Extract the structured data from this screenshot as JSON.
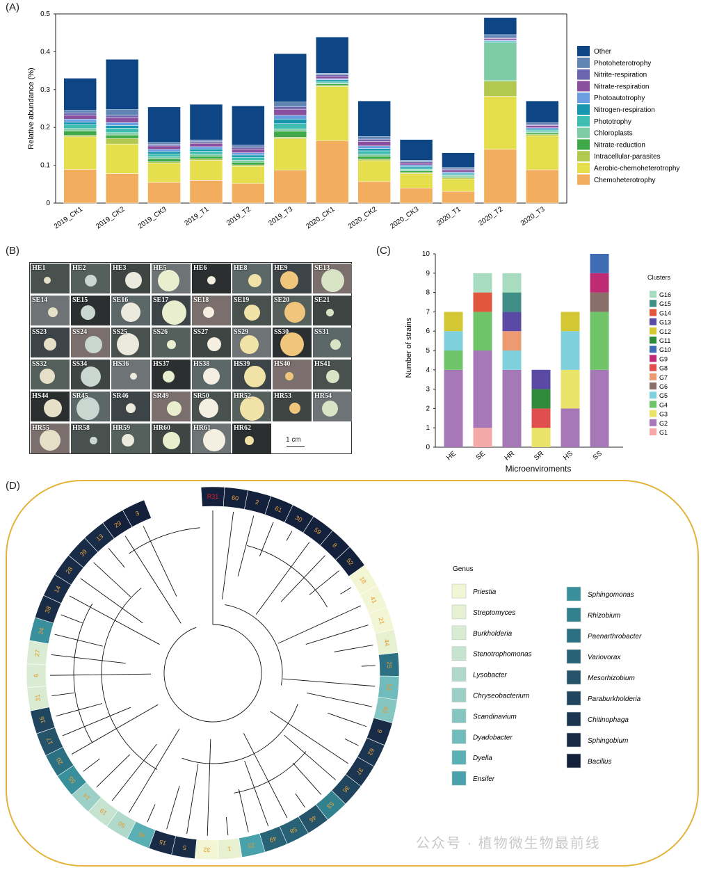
{
  "panel_labels": {
    "a": "(A)",
    "b": "(B)",
    "c": "(C)",
    "d": "(D)"
  },
  "chart_data": [
    {
      "type": "bar",
      "stacked": true,
      "ylabel": "Relative abundance (%)",
      "ylim": [
        0,
        0.5
      ],
      "yticks": [
        "0",
        "0.1",
        "0.2",
        "0.3",
        "0.4",
        "0.5"
      ],
      "legend_position": "right",
      "categories": [
        "2019_CK1",
        "2019_CK2",
        "2019_CK3",
        "2019_T1",
        "2019_T2",
        "2019_T3",
        "2020_CK1",
        "2020_CK2",
        "2020_CK3",
        "2020_T1",
        "2020_T2",
        "2020_T3"
      ],
      "series": [
        {
          "name": "Chemoheterotrophy",
          "color": "#f2ae5e",
          "values": [
            0.089,
            0.078,
            0.055,
            0.06,
            0.052,
            0.087,
            0.165,
            0.057,
            0.04,
            0.031,
            0.142,
            0.088
          ]
        },
        {
          "name": "Aerobic-chemoheterotrophy",
          "color": "#e6df4d",
          "values": [
            0.086,
            0.078,
            0.05,
            0.053,
            0.045,
            0.083,
            0.143,
            0.055,
            0.038,
            0.033,
            0.14,
            0.09
          ]
        },
        {
          "name": "Intracellular-parasites",
          "color": "#b3c84e",
          "values": [
            0.004,
            0.015,
            0.004,
            0.004,
            0.004,
            0.004,
            0.003,
            0.004,
            0.003,
            0.003,
            0.04,
            0.004
          ]
        },
        {
          "name": "Nitrate-reduction",
          "color": "#3fa94a",
          "values": [
            0.012,
            0.009,
            0.008,
            0.007,
            0.007,
            0.016,
            0.004,
            0.008,
            0.004,
            0.003,
            0.002,
            0.004
          ]
        },
        {
          "name": "Chloroplasts",
          "color": "#7ecba6",
          "values": [
            0.006,
            0.006,
            0.005,
            0.005,
            0.005,
            0.006,
            0.003,
            0.005,
            0.004,
            0.003,
            0.1,
            0.003
          ]
        },
        {
          "name": "Phototrophy",
          "color": "#3fbdb0",
          "values": [
            0.01,
            0.012,
            0.008,
            0.008,
            0.008,
            0.014,
            0.004,
            0.009,
            0.004,
            0.003,
            0.003,
            0.004
          ]
        },
        {
          "name": "Nitrogen-respiration",
          "color": "#1a97b0",
          "values": [
            0.007,
            0.007,
            0.006,
            0.006,
            0.006,
            0.012,
            0.004,
            0.006,
            0.004,
            0.003,
            0.002,
            0.003
          ]
        },
        {
          "name": "Photoautotrophy",
          "color": "#6a9ee0",
          "values": [
            0.008,
            0.008,
            0.006,
            0.006,
            0.006,
            0.01,
            0.003,
            0.007,
            0.004,
            0.003,
            0.002,
            0.003
          ]
        },
        {
          "name": "Nitrate-respiration",
          "color": "#8a4f9e",
          "values": [
            0.01,
            0.013,
            0.009,
            0.009,
            0.01,
            0.016,
            0.006,
            0.012,
            0.005,
            0.005,
            0.004,
            0.006
          ]
        },
        {
          "name": "Nitrite-respiration",
          "color": "#6b66ad",
          "values": [
            0.006,
            0.006,
            0.004,
            0.004,
            0.005,
            0.007,
            0.004,
            0.006,
            0.003,
            0.003,
            0.002,
            0.003
          ]
        },
        {
          "name": "Photoheterotrophy",
          "color": "#6185b5",
          "values": [
            0.007,
            0.015,
            0.005,
            0.005,
            0.005,
            0.012,
            0.004,
            0.007,
            0.004,
            0.004,
            0.008,
            0.004
          ]
        },
        {
          "name": "Other",
          "color": "#0d4585",
          "values": [
            0.085,
            0.133,
            0.094,
            0.094,
            0.104,
            0.128,
            0.096,
            0.094,
            0.055,
            0.039,
            0.045,
            0.058
          ]
        }
      ]
    },
    {
      "type": "bar",
      "stacked": true,
      "xlabel": "Microenviroments",
      "ylabel": "Number of strains",
      "ylim": [
        0,
        10
      ],
      "yticks": [
        "0",
        "1",
        "2",
        "3",
        "4",
        "5",
        "6",
        "7",
        "8",
        "9",
        "10"
      ],
      "legend_title": "Clusters",
      "legend_position": "right",
      "categories": [
        "HE",
        "SE",
        "HR",
        "SR",
        "HS",
        "SS"
      ],
      "series": [
        {
          "name": "G1",
          "color": "#f4a9a8",
          "values": [
            0,
            1,
            0,
            0,
            0,
            0
          ]
        },
        {
          "name": "G2",
          "color": "#a678b8",
          "values": [
            4,
            4,
            4,
            0,
            2,
            4
          ]
        },
        {
          "name": "G3",
          "color": "#e9e36a",
          "values": [
            0,
            0,
            0,
            1,
            2,
            0
          ]
        },
        {
          "name": "G4",
          "color": "#6fc46a",
          "values": [
            1,
            2,
            0,
            0,
            0,
            3
          ]
        },
        {
          "name": "G5",
          "color": "#7fd0dd",
          "values": [
            1,
            0,
            1,
            0,
            2,
            0
          ]
        },
        {
          "name": "G6",
          "color": "#8a6e6a",
          "values": [
            0,
            0,
            0,
            0,
            0,
            1
          ]
        },
        {
          "name": "G7",
          "color": "#ec9a72",
          "values": [
            0,
            0,
            1,
            0,
            0,
            0
          ]
        },
        {
          "name": "G8",
          "color": "#e04f4d",
          "values": [
            0,
            0,
            0,
            1,
            0,
            0
          ]
        },
        {
          "name": "G9",
          "color": "#bf2a74",
          "values": [
            0,
            0,
            0,
            0,
            0,
            1
          ]
        },
        {
          "name": "G10",
          "color": "#3f6db3",
          "values": [
            0,
            0,
            0,
            0,
            0,
            1
          ]
        },
        {
          "name": "G11",
          "color": "#2f8a3a",
          "values": [
            0,
            0,
            0,
            1,
            0,
            0
          ]
        },
        {
          "name": "G12",
          "color": "#d4c734",
          "values": [
            1,
            0,
            0,
            0,
            1,
            0
          ]
        },
        {
          "name": "G13",
          "color": "#5a4aa6",
          "values": [
            0,
            0,
            1,
            1,
            0,
            0
          ]
        },
        {
          "name": "G14",
          "color": "#e1573e",
          "values": [
            0,
            1,
            0,
            0,
            0,
            0
          ]
        },
        {
          "name": "G15",
          "color": "#3f8f86",
          "values": [
            0,
            0,
            1,
            0,
            0,
            0
          ]
        },
        {
          "name": "G16",
          "color": "#a8dcc0",
          "values": [
            0,
            1,
            1,
            0,
            0,
            0
          ]
        }
      ]
    }
  ],
  "colonies": {
    "scale_bar": "1 cm",
    "labels": [
      "HE1",
      "HE2",
      "HE3",
      "HE5",
      "HE6",
      "HE8",
      "HE9",
      "SE13",
      "SE14",
      "SE15",
      "SE16",
      "SE17",
      "SE18",
      "SE19",
      "SE20",
      "SE21",
      "SS23",
      "SS24",
      "SS25",
      "SS26",
      "SS27",
      "SS29",
      "SS30",
      "SS31",
      "SS32",
      "SS34",
      "HS36",
      "HS37",
      "HS38",
      "HS39",
      "HS40",
      "HS41",
      "HS44",
      "SR45",
      "SR46",
      "SR49",
      "SR50",
      "HR52",
      "HR53",
      "HR54",
      "HR55",
      "HR58",
      "HR59",
      "HR60",
      "HR61",
      "HR62"
    ]
  },
  "tree": {
    "legend_title": "Genus",
    "genera": [
      {
        "name": "Priestia",
        "color": "#f3f6d4"
      },
      {
        "name": "Streptomyces",
        "color": "#e7f1d2"
      },
      {
        "name": "Burkholderia",
        "color": "#d9ecd3"
      },
      {
        "name": "Stenotrophomonas",
        "color": "#c6e3cf"
      },
      {
        "name": "Lysobacter",
        "color": "#b0d9cb"
      },
      {
        "name": "Chryseobacterium",
        "color": "#9cd0c6"
      },
      {
        "name": "Scandinavium",
        "color": "#86c6c1"
      },
      {
        "name": "Dyadobacter",
        "color": "#70bbbb"
      },
      {
        "name": "Dyella",
        "color": "#5aafb4"
      },
      {
        "name": "Ensifer",
        "color": "#48a1ab"
      },
      {
        "name": "Sphingomonas",
        "color": "#3a8f9c"
      },
      {
        "name": "Rhizobium",
        "color": "#32818f"
      },
      {
        "name": "Paenarthrobacter",
        "color": "#2c7183"
      },
      {
        "name": "Variovorax",
        "color": "#286277"
      },
      {
        "name": "Mesorhizobium",
        "color": "#24536a"
      },
      {
        "name": "Paraburkholderia",
        "color": "#20455e"
      },
      {
        "name": "Chitinophaga",
        "color": "#1c3652"
      },
      {
        "name": "Sphingobium",
        "color": "#182b47"
      },
      {
        "name": "Bacillus",
        "color": "#14213c"
      }
    ],
    "leaves": [
      {
        "id": "R31",
        "genus": "Bacillus",
        "red": true
      },
      {
        "id": "60",
        "genus": "Bacillus"
      },
      {
        "id": "2",
        "genus": "Bacillus"
      },
      {
        "id": "61",
        "genus": "Bacillus"
      },
      {
        "id": "30",
        "genus": "Bacillus"
      },
      {
        "id": "59",
        "genus": "Bacillus"
      },
      {
        "id": "8",
        "genus": "Bacillus"
      },
      {
        "id": "52",
        "genus": "Bacillus"
      },
      {
        "id": "18",
        "genus": "Priestia"
      },
      {
        "id": "41",
        "genus": "Priestia"
      },
      {
        "id": "21",
        "genus": "Priestia"
      },
      {
        "id": "44",
        "genus": "Streptomyces"
      },
      {
        "id": "25",
        "genus": "Paenarthrobacter"
      },
      {
        "id": "54",
        "genus": "Dyadobacter"
      },
      {
        "id": "40",
        "genus": "Scandinavium"
      },
      {
        "id": "9",
        "genus": "Sphingobium"
      },
      {
        "id": "62",
        "genus": "Chitinophaga"
      },
      {
        "id": "37",
        "genus": "Chitinophaga"
      },
      {
        "id": "36",
        "genus": "Paraburkholderia"
      },
      {
        "id": "53",
        "genus": "Rhizobium"
      },
      {
        "id": "46",
        "genus": "Mesorhizobium"
      },
      {
        "id": "58",
        "genus": "Variovorax"
      },
      {
        "id": "49",
        "genus": "Variovorax"
      },
      {
        "id": "23",
        "genus": "Ensifer"
      },
      {
        "id": "1",
        "genus": "Streptomyces"
      },
      {
        "id": "32",
        "genus": "Priestia"
      },
      {
        "id": "5",
        "genus": "Sphingobium"
      },
      {
        "id": "15",
        "genus": "Sphingobium"
      },
      {
        "id": "45",
        "genus": "Dyella"
      },
      {
        "id": "50",
        "genus": "Lysobacter"
      },
      {
        "id": "19",
        "genus": "Stenotrophomonas"
      },
      {
        "id": "14",
        "genus": "Chryseobacterium"
      },
      {
        "id": "55",
        "genus": "Sphingomonas"
      },
      {
        "id": "20",
        "genus": "Paenarthrobacter"
      },
      {
        "id": "17",
        "genus": "Mesorhizobium"
      },
      {
        "id": "16",
        "genus": "Paraburkholderia"
      },
      {
        "id": "31",
        "genus": "Burkholderia"
      },
      {
        "id": "6",
        "genus": "Burkholderia"
      },
      {
        "id": "27",
        "genus": "Burkholderia"
      },
      {
        "id": "24",
        "genus": "Sphingomonas"
      },
      {
        "id": "38",
        "genus": "Sphingobium"
      },
      {
        "id": "14",
        "genus": "Sphingobium"
      },
      {
        "id": "28",
        "genus": "Sphingobium"
      },
      {
        "id": "39",
        "genus": "Sphingobium"
      },
      {
        "id": "13",
        "genus": "Sphingobium"
      },
      {
        "id": "29",
        "genus": "Bacillus"
      },
      {
        "id": "3",
        "genus": "Bacillus"
      }
    ]
  },
  "watermark": "公众号 · 植物微生物最前线"
}
